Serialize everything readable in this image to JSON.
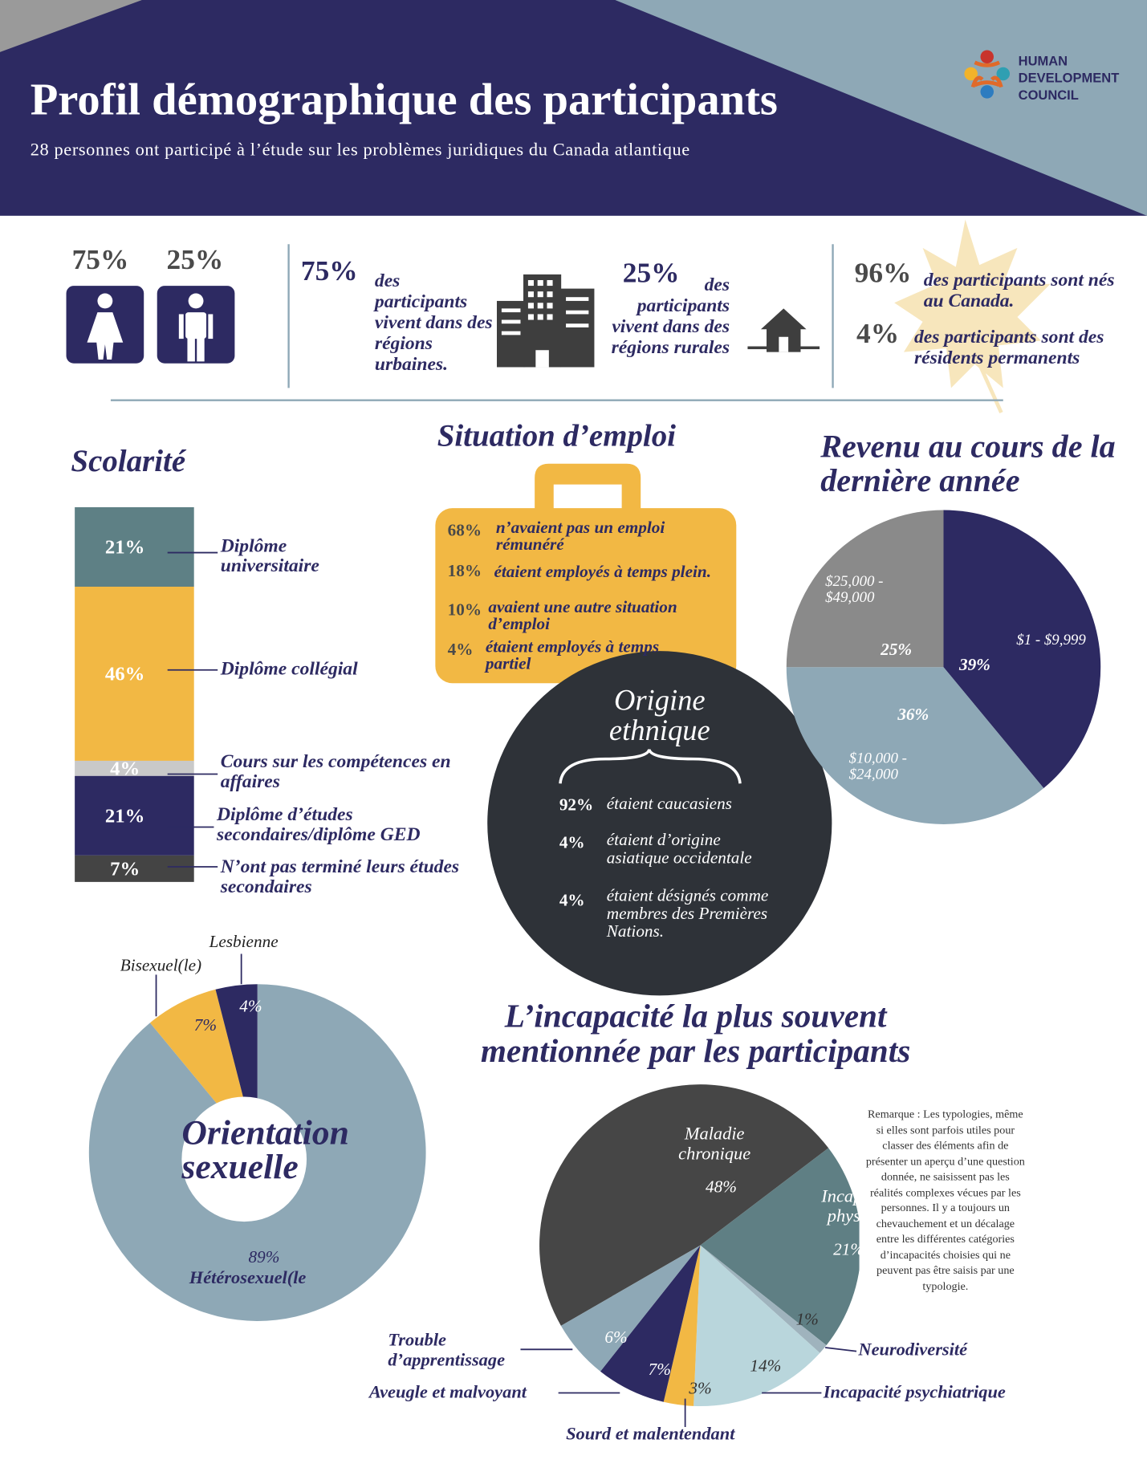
{
  "header": {
    "title": "Profil démographique des participants",
    "subtitle": "28 personnes ont participé à l’étude sur les problèmes juridiques du Canada atlantique",
    "logo": [
      "HUMAN",
      "DEVELOPMENT",
      "COUNCIL"
    ]
  },
  "gender": [
    "75%",
    "25%"
  ],
  "residence": [
    {
      "pct": "75%",
      "text": "des participants vivent dans des régions urbaines."
    },
    {
      "pct": "25%",
      "text": "des participants vivent dans des régions rurales"
    }
  ],
  "status": [
    {
      "pct": "96%",
      "text": "des participants sont nés au Canada."
    },
    {
      "pct": "4%",
      "text": "des participants sont des résidents permanents"
    }
  ],
  "employment": {
    "title": "Situation d’emploi",
    "items": [
      {
        "pct": "68%",
        "text": "n’avaient pas un emploi rémunéré"
      },
      {
        "pct": "18%",
        "text": "étaient employés à temps plein."
      },
      {
        "pct": "10%",
        "text": "avaient une autre situation d’emploi"
      },
      {
        "pct": "4%",
        "text": "étaient employés à temps partiel"
      }
    ]
  },
  "ethnicity": {
    "title": "Origine ethnique",
    "items": [
      {
        "pct": "92%",
        "text": "étaient caucasiens"
      },
      {
        "pct": "4%",
        "text": "étaient d’origine asiatique occidentale"
      },
      {
        "pct": "4%",
        "text": "étaient désignés comme membres des Premières Nations."
      }
    ]
  },
  "chart_data": [
    {
      "type": "stacked_bar",
      "title": "Scolarité",
      "categories": [
        "Diplôme universitaire",
        "Diplôme collégial",
        "Cours sur les compétences en affaires",
        "Diplôme d’études secondaires/diplôme GED",
        "N’ont pas terminé leurs études secondaires"
      ],
      "values": [
        21,
        46,
        4,
        21,
        7
      ],
      "value_labels": [
        "21%",
        "46%",
        "4%",
        "21%",
        "7%"
      ],
      "colors": [
        "#5e8085",
        "#f2b844",
        "#c9c9c9",
        "#2d2a62",
        "#444444"
      ]
    },
    {
      "type": "pie",
      "title": "Revenu au cours de la dernière année",
      "categories": [
        "$1 - $9,999",
        "$10,000 - $24,000",
        "$25,000 - $49,000"
      ],
      "values": [
        39,
        36,
        25
      ],
      "value_labels": [
        "39%",
        "36%",
        "25%"
      ],
      "colors": [
        "#2d2a62",
        "#8ea8b6",
        "#8a8a8a"
      ]
    },
    {
      "type": "donut",
      "title": "Orientation sexuelle",
      "categories": [
        "Hétérosexuel(le",
        "Bisexuel(le)",
        "Lesbienne"
      ],
      "values": [
        89,
        7,
        4
      ],
      "value_labels": [
        "89%",
        "7%",
        "4%"
      ],
      "colors": [
        "#8ea8b6",
        "#f2b844",
        "#2d2a62"
      ]
    },
    {
      "type": "pie",
      "title": "L’incapacité la plus souvent mentionnée par les participants",
      "categories": [
        "Maladie chronique",
        "Incapacité physique",
        "Neurodiversité",
        "Incapacité psychiatrique",
        "Sourd et malentendant",
        "Aveugle et malvoyant",
        "Trouble d’apprentissage"
      ],
      "values": [
        48,
        21,
        1,
        14,
        3,
        7,
        6
      ],
      "value_labels": [
        "48%",
        "21%",
        "1%",
        "14%",
        "3%",
        "7%",
        "6%"
      ],
      "colors": [
        "#464646",
        "#5f7f84",
        "#9fb3bd",
        "#b9d6dc",
        "#f2b844",
        "#2d2a62",
        "#8ea8b6"
      ],
      "note": "Remarque : Les typologies, même si elles sont parfois utiles pour classer des éléments afin de présenter un aperçu d’une question donnée, ne saisissent pas les réalités complexes vécues par les personnes. Il y a toujours un chevauchement et un décalage entre les différentes catégories d’incapacités choisies qui ne peuvent pas être saisis par une typologie."
    }
  ]
}
